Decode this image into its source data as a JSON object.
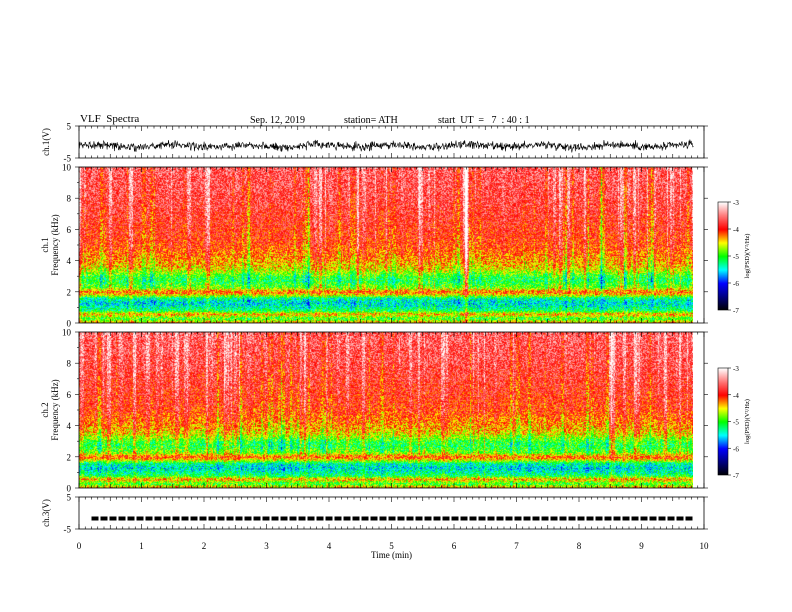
{
  "header": {
    "title": "VLF  Spectra",
    "date": "Sep. 12, 2019",
    "station": "station= ATH",
    "start": "start  UT  =   7  : 40 : 1"
  },
  "chart_data": {
    "type": "heatmap",
    "panels": [
      {
        "id": "ch1-waveform",
        "type": "line",
        "ylabel": "ch.1(V)",
        "ylim": [
          -5,
          5
        ],
        "yticks": [
          "5",
          "-5"
        ],
        "description_of_signal": "noisy oscillation mostly within about -3 to 1 V across 0–9.8 min"
      },
      {
        "id": "ch1-spectrogram",
        "type": "heatmap",
        "ylabel": "ch.1\nFrequency (kHz)",
        "ylim": [
          0,
          10
        ],
        "yticks": [
          "0",
          "2",
          "4",
          "6",
          "8",
          "10"
        ],
        "colorbar": {
          "label": "log(PSD)(V²/Hz)",
          "range": [
            -7,
            -3
          ],
          "ticks": [
            "-3",
            "-4",
            "-5",
            "-6",
            "-7"
          ]
        }
      },
      {
        "id": "ch2-spectrogram",
        "type": "heatmap",
        "ylabel": "ch.2\nFrequency (kHz)",
        "ylim": [
          0,
          10
        ],
        "yticks": [
          "0",
          "2",
          "4",
          "6",
          "8",
          "10"
        ],
        "colorbar": {
          "label": "log(PSD)(V²/Hz)",
          "range": [
            -7,
            -3
          ],
          "ticks": [
            "-3",
            "-4",
            "-5",
            "-6",
            "-7"
          ]
        }
      },
      {
        "id": "ch3-waveform",
        "type": "line",
        "ylabel": "ch.3(V)",
        "ylim": [
          -5,
          5
        ],
        "yticks": [
          "5",
          "-5"
        ],
        "level": -1.7
      }
    ],
    "xlabel": "Time  (min)",
    "xlim": [
      0,
      10
    ],
    "xticks": [
      "0",
      "1",
      "2",
      "3",
      "4",
      "5",
      "6",
      "7",
      "8",
      "9",
      "10"
    ],
    "data_end_min": 9.83,
    "spectrogram_profile": {
      "freq_khz": [
        0,
        0.3,
        0.6,
        0.8,
        1.0,
        1.3,
        1.6,
        1.8,
        2.0,
        2.3,
        2.7,
        3.0,
        3.5,
        4.0,
        5.0,
        6.0,
        8.0,
        10.0
      ],
      "log_psd": [
        -4.2,
        -5.0,
        -4.3,
        -5.1,
        -5.3,
        -5.5,
        -5.3,
        -4.6,
        -4.1,
        -4.8,
        -5.1,
        -5.0,
        -4.5,
        -4.3,
        -4.0,
        -3.9,
        -3.7,
        -3.6
      ]
    },
    "colormap": [
      "#ffffff",
      "#ff0000",
      "#ffff00",
      "#00ff00",
      "#00ffff",
      "#0000ff",
      "#000000"
    ]
  }
}
